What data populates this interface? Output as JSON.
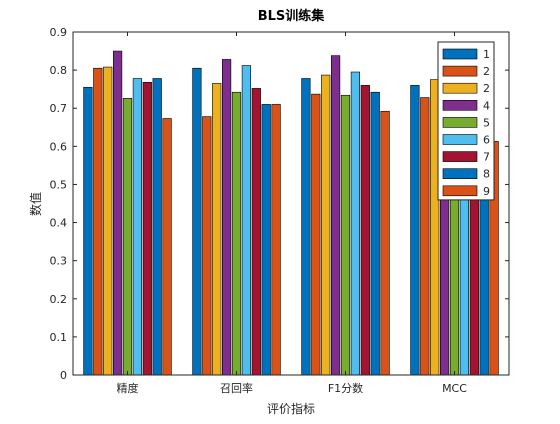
{
  "chart_data": {
    "type": "bar",
    "title": "BLS训练集",
    "xlabel": "评价指标",
    "ylabel": "数值",
    "categories": [
      "精度",
      "召回率",
      "F1分数",
      "MCC"
    ],
    "ylim": [
      0,
      0.9
    ],
    "yticks": [
      "0",
      "0.1",
      "0.2",
      "0.3",
      "0.4",
      "0.5",
      "0.6",
      "0.7",
      "0.8",
      "0.9"
    ],
    "grid": false,
    "legend_position": "top-right",
    "series": [
      {
        "name": "1",
        "color": "#0072BD",
        "values": [
          0.755,
          0.805,
          0.778,
          0.76
        ]
      },
      {
        "name": "2",
        "color": "#D95319",
        "values": [
          0.805,
          0.678,
          0.737,
          0.728
        ]
      },
      {
        "name": "2",
        "color": "#EDB120",
        "values": [
          0.808,
          0.765,
          0.787,
          0.775
        ]
      },
      {
        "name": "4",
        "color": "#7E2F8E",
        "values": [
          0.85,
          0.828,
          0.838,
          0.82
        ]
      },
      {
        "name": "5",
        "color": "#77AC30",
        "values": [
          0.726,
          0.742,
          0.734,
          0.73
        ]
      },
      {
        "name": "6",
        "color": "#4DBEEE",
        "values": [
          0.778,
          0.812,
          0.795,
          0.78
        ]
      },
      {
        "name": "7",
        "color": "#A2142F",
        "values": [
          0.768,
          0.752,
          0.76,
          0.76
        ]
      },
      {
        "name": "8",
        "color": "#0072BD",
        "values": [
          0.778,
          0.71,
          0.742,
          0.73
        ]
      },
      {
        "name": "9",
        "color": "#D95319",
        "values": [
          0.673,
          0.71,
          0.692,
          0.613
        ]
      }
    ]
  }
}
